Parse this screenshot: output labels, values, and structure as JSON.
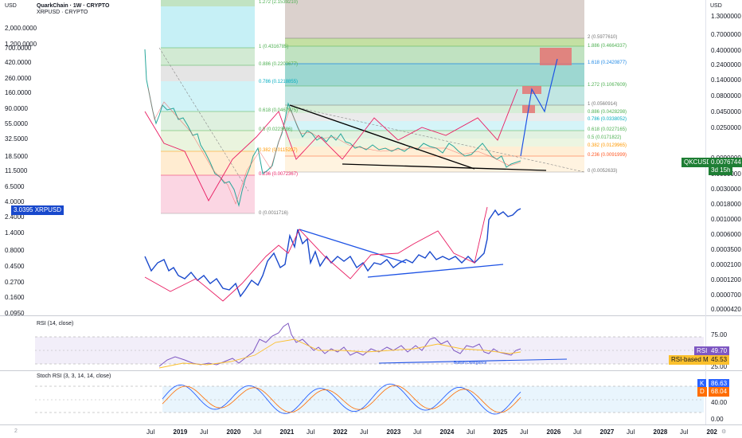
{
  "header": {
    "left_unit": "USD",
    "right_unit": "USD",
    "main_symbol": "QuarkChain · 1W · CRYPTO",
    "overlay_symbol": "XRPUSD · CRYPTO"
  },
  "left_axis": {
    "labels": [
      "2,000.0000",
      "1,200.0000",
      "700.0000",
      "420.0000",
      "260.0000",
      "160.0000",
      "90.0000",
      "55.0000",
      "32.5000",
      "18.5000",
      "11.5000",
      "6.5000",
      "4.0000",
      "2.4000",
      "1.4000",
      "0.8000",
      "0.4500",
      "0.2700",
      "0.1600",
      "0.0950"
    ],
    "xrp_tag": "XRPUSD",
    "xrp_value": "3.0395"
  },
  "right_axis": {
    "labels": [
      "1.3000000",
      "0.7000000",
      "0.4000000",
      "0.2400000",
      "0.1400000",
      "0.0800000",
      "0.0450000",
      "0.0250000",
      "0.0090000",
      "0.0050000",
      "0.0030000",
      "0.0018000",
      "0.0010000",
      "0.0006000",
      "0.0003500",
      "0.0002100",
      "0.0001200",
      "0.0000700",
      "0.0000420"
    ],
    "qkc_tag": "QKCUSD",
    "qkc_value": "0.0076744",
    "qkc_countdown": "3d 15h"
  },
  "fib_left": [
    "1.272 (2.1539210)",
    "1 (0.4316785)",
    "0.886 (0.2203677)",
    "0.786 (0.1218855)",
    "0.618 (0.0467975)",
    "0.5 (0.0223686)",
    "0.382 (0.0115297)",
    "0.236 (0.0072367)",
    "0 (0.0011716)"
  ],
  "fib_right": [
    "2 (0.5977610)",
    "1.886 (0.4664337)",
    "1.618 (0.2420877)",
    "1.272 (0.1067609)",
    "1 (0.0560914)",
    "0.886 (0.0428298)",
    "0.786 (0.0338052)",
    "0.618 (0.0227165)",
    "0.5 (0.0171822)",
    "0.382 (0.0129965)",
    "0.236 (0.0091999)",
    "0 (0.0052633)"
  ],
  "rsi_panel": {
    "title": "RSI (14, close)",
    "levels": [
      "75.00",
      "25.00"
    ],
    "rsi_tag": "RSI",
    "rsi_value": "49.70",
    "ma_tag": "RSI-based MA",
    "ma_value": "45.53",
    "annotation": "Bullish Divergence"
  },
  "stoch_panel": {
    "title": "Stoch RSI (3, 3, 14, 14, close)",
    "levels": [
      "40.00",
      "0.00"
    ],
    "k_tag": "K",
    "k_value": "86.63",
    "d_tag": "D",
    "d_value": "68.04"
  },
  "time_axis": {
    "labels": [
      {
        "t": "Jul",
        "year": false
      },
      {
        "t": "2019",
        "year": true
      },
      {
        "t": "Jul",
        "year": false
      },
      {
        "t": "2020",
        "year": true
      },
      {
        "t": "Jul",
        "year": false
      },
      {
        "t": "2021",
        "year": true
      },
      {
        "t": "Jul",
        "year": false
      },
      {
        "t": "2022",
        "year": true
      },
      {
        "t": "Jul",
        "year": false
      },
      {
        "t": "2023",
        "year": true
      },
      {
        "t": "Jul",
        "year": false
      },
      {
        "t": "2024",
        "year": true
      },
      {
        "t": "Jul",
        "year": false
      },
      {
        "t": "2025",
        "year": true
      },
      {
        "t": "Jul",
        "year": false
      },
      {
        "t": "2026",
        "year": true
      },
      {
        "t": "Jul",
        "year": false
      },
      {
        "t": "2027",
        "year": true
      },
      {
        "t": "Jul",
        "year": false
      },
      {
        "t": "2028",
        "year": true
      },
      {
        "t": "Jul",
        "year": false
      },
      {
        "t": "202",
        "year": true
      }
    ]
  },
  "colors": {
    "qkc_tag": "#1e7e34",
    "xrp_tag": "#1848cc",
    "rsi_line": "#7e57c2",
    "rsi_ma": "#fbc02d",
    "stoch_k": "#2962ff",
    "stoch_d": "#ff6d00",
    "pink": "#e91e63",
    "blue": "#1e53e5"
  }
}
